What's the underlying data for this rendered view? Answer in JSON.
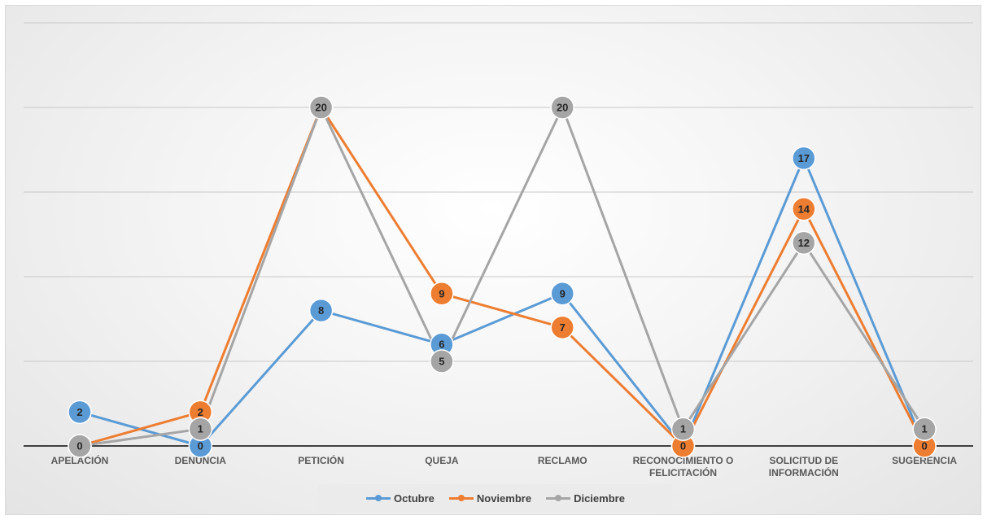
{
  "chart_data": {
    "type": "line",
    "title": "",
    "xlabel": "",
    "ylabel": "",
    "categories": [
      "APELACIÓN",
      "DENUNCIA",
      "PETICIÓN",
      "QUEJA",
      "RECLAMO",
      "RECONOCIMIENTO O FELICITACIÓN",
      "SOLICITUD DE INFORMACIÓN",
      "SUGERENCIA"
    ],
    "ylim": [
      0,
      20
    ],
    "grid": true,
    "legend_position": "bottom",
    "data_labels": true,
    "series": [
      {
        "name": "Octubre",
        "color": "#5b9bd5",
        "values": [
          2,
          0,
          8,
          6,
          9,
          0,
          17,
          0
        ]
      },
      {
        "name": "Noviembre",
        "color": "#ed7d31",
        "values": [
          0,
          2,
          20,
          9,
          7,
          0,
          14,
          0
        ]
      },
      {
        "name": "Diciembre",
        "color": "#a5a5a5",
        "values": [
          0,
          1,
          20,
          5,
          20,
          1,
          12,
          1
        ]
      }
    ]
  }
}
